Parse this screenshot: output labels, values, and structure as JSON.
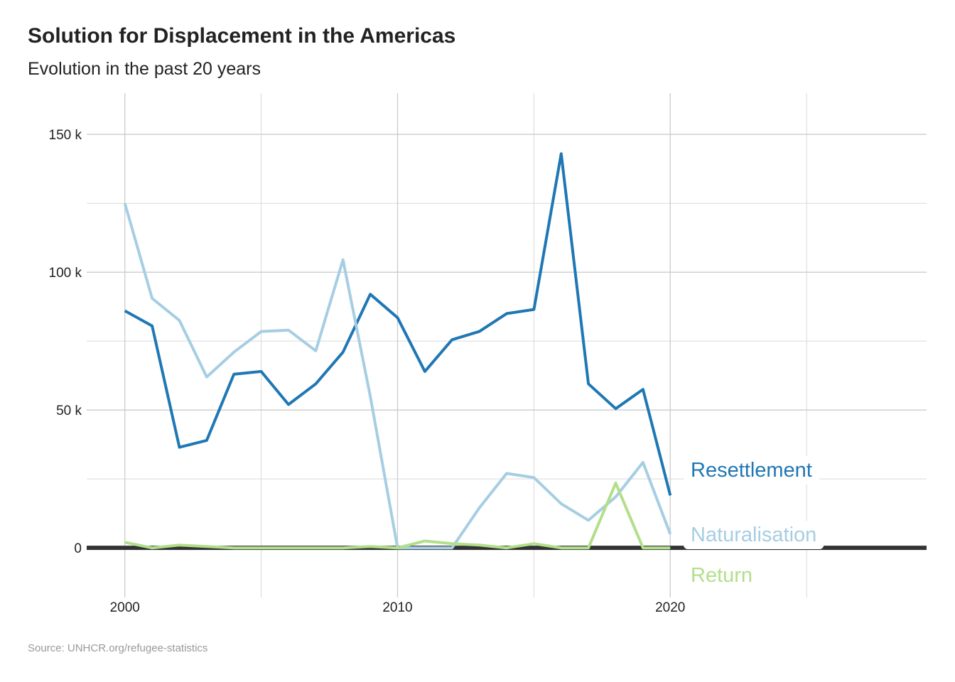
{
  "title": "Solution for Displacement in the Americas",
  "subtitle": "Evolution in the past 20 years",
  "caption": "Source: UNHCR.org/refugee-statistics",
  "chart_data": {
    "type": "line",
    "title": "Solution for Displacement in the Americas",
    "subtitle": "Evolution in the past 20 years",
    "xlabel": "",
    "ylabel": "",
    "xlim": [
      1998.6,
      2029.4
    ],
    "ylim": [
      -18000,
      165000
    ],
    "x_ticks": [
      2000,
      2010,
      2020
    ],
    "x_tick_labels": [
      "2000",
      "2010",
      "2020"
    ],
    "x_minor_ticks": [
      2005,
      2015,
      2025
    ],
    "y_ticks": [
      0,
      50000,
      100000,
      150000
    ],
    "y_tick_labels": [
      "0",
      "50 k",
      "100 k",
      "150 k"
    ],
    "y_minor_ticks": [
      25000,
      75000,
      125000
    ],
    "grid": true,
    "legend": "direct labels at line ends",
    "x": [
      2000,
      2001,
      2002,
      2003,
      2004,
      2005,
      2006,
      2007,
      2008,
      2009,
      2010,
      2011,
      2012,
      2013,
      2014,
      2015,
      2016,
      2017,
      2018,
      2019,
      2020
    ],
    "series": [
      {
        "name": "Resettlement",
        "color": "#1f77b4",
        "values": [
          86000,
          80500,
          36500,
          39000,
          63000,
          64000,
          52000,
          59500,
          71000,
          92000,
          83500,
          64000,
          75500,
          78500,
          85000,
          86500,
          143000,
          59500,
          50500,
          57500,
          19000
        ]
      },
      {
        "name": "Naturalisation",
        "color": "#a6cee3",
        "values": [
          125000,
          90500,
          82500,
          62000,
          71000,
          78500,
          79000,
          71500,
          104500,
          55000,
          0,
          0,
          0,
          14500,
          27000,
          25500,
          16000,
          10000,
          18500,
          31000,
          5000
        ]
      },
      {
        "name": "Return",
        "color": "#b2df8a",
        "values": [
          2000,
          0,
          1000,
          500,
          0,
          0,
          0,
          0,
          0,
          500,
          0,
          2500,
          1500,
          1000,
          0,
          1500,
          0,
          0,
          23500,
          0,
          0
        ]
      }
    ]
  }
}
